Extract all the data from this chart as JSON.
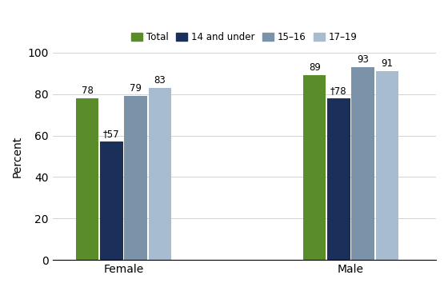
{
  "groups": [
    "Female",
    "Male"
  ],
  "categories": [
    "Total",
    "14 and under",
    "15–16",
    "17–19"
  ],
  "values": {
    "Female": [
      78,
      57,
      79,
      83
    ],
    "Male": [
      89,
      78,
      93,
      91
    ]
  },
  "bar_colors": [
    "#5b8c2a",
    "#1a2f5a",
    "#7a93a8",
    "#a8bccf"
  ],
  "labels": {
    "Female": [
      "78",
      "±57",
      "79",
      "83"
    ],
    "Male": [
      "89",
      "±78",
      "93",
      "91"
    ]
  },
  "ylabel": "Percent",
  "ylim": [
    0,
    100
  ],
  "yticks": [
    0,
    20,
    40,
    60,
    80,
    100
  ],
  "legend_labels": [
    "Total",
    "14 and under",
    "15–16",
    "17–19"
  ],
  "bar_width": 0.16,
  "group_centers": [
    1.0,
    2.6
  ],
  "xlim": [
    0.5,
    3.2
  ],
  "background_color": "#ffffff",
  "label_fontsize": 8.5,
  "axis_fontsize": 10,
  "legend_fontsize": 8.5
}
